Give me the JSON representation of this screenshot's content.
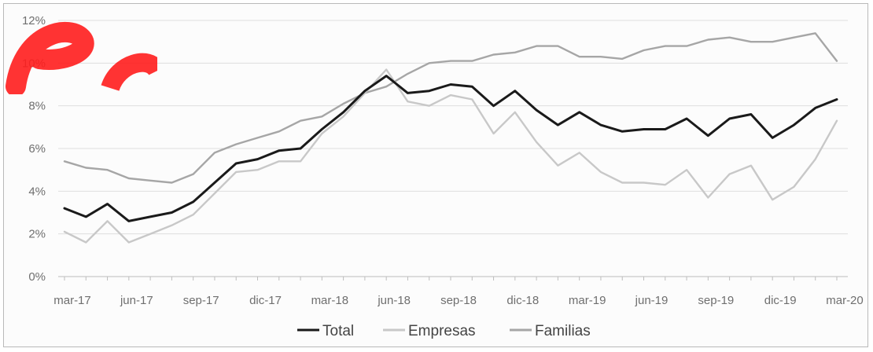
{
  "chart_data": {
    "type": "line",
    "title": "",
    "xlabel": "",
    "ylabel": "",
    "ylim": [
      0,
      12
    ],
    "yticks": [
      0,
      2,
      4,
      6,
      8,
      10,
      12
    ],
    "ytick_labels": [
      "0%",
      "2%",
      "4%",
      "6%",
      "8%",
      "10%",
      "12%"
    ],
    "grid": true,
    "legend_position": "bottom",
    "x": [
      "mar-17",
      "abr-17",
      "may-17",
      "jun-17",
      "jul-17",
      "ago-17",
      "sep-17",
      "oct-17",
      "nov-17",
      "dic-17",
      "ene-18",
      "feb-18",
      "mar-18",
      "abr-18",
      "may-18",
      "jun-18",
      "jul-18",
      "ago-18",
      "sep-18",
      "oct-18",
      "nov-18",
      "dic-18",
      "ene-19",
      "feb-19",
      "mar-19",
      "abr-19",
      "may-19",
      "jun-19",
      "jul-19",
      "ago-19",
      "sep-19",
      "oct-19",
      "nov-19",
      "dic-19",
      "ene-20",
      "feb-20",
      "mar-20"
    ],
    "xtick_labels": [
      "mar-17",
      "jun-17",
      "sep-17",
      "dic-17",
      "mar-18",
      "jun-18",
      "sep-18",
      "dic-18",
      "mar-19",
      "jun-19",
      "sep-19",
      "dic-19",
      "mar-20"
    ],
    "series": [
      {
        "name": "Total",
        "color": "#1a1a1a",
        "values": [
          3.2,
          2.8,
          3.4,
          2.6,
          2.8,
          3.0,
          3.5,
          4.4,
          5.3,
          5.5,
          5.9,
          6.0,
          6.9,
          7.7,
          8.7,
          9.4,
          8.6,
          8.7,
          9.0,
          8.9,
          8.0,
          8.7,
          7.8,
          7.1,
          7.7,
          7.1,
          6.8,
          6.9,
          6.9,
          7.4,
          6.6,
          7.4,
          7.6,
          6.5,
          7.1,
          7.9,
          8.3
        ]
      },
      {
        "name": "Empresas",
        "color": "#c8c8c8",
        "values": [
          2.1,
          1.6,
          2.6,
          1.6,
          2.0,
          2.4,
          2.9,
          3.9,
          4.9,
          5.0,
          5.4,
          5.4,
          6.7,
          7.5,
          8.6,
          9.7,
          8.2,
          8.0,
          8.5,
          8.3,
          6.7,
          7.7,
          6.3,
          5.2,
          5.8,
          4.9,
          4.4,
          4.4,
          4.3,
          5.0,
          3.7,
          4.8,
          5.2,
          3.6,
          4.2,
          5.5,
          7.3
        ]
      },
      {
        "name": "Familias",
        "color": "#a6a6a6",
        "values": [
          5.4,
          5.1,
          5.0,
          4.6,
          4.5,
          4.4,
          4.8,
          5.8,
          6.2,
          6.5,
          6.8,
          7.3,
          7.5,
          8.1,
          8.6,
          8.9,
          9.5,
          10.0,
          10.1,
          10.1,
          10.4,
          10.5,
          10.8,
          10.8,
          10.3,
          10.3,
          10.2,
          10.6,
          10.8,
          10.8,
          11.1,
          11.2,
          11.0,
          11.0,
          11.2,
          11.4,
          10.1
        ]
      }
    ]
  }
}
